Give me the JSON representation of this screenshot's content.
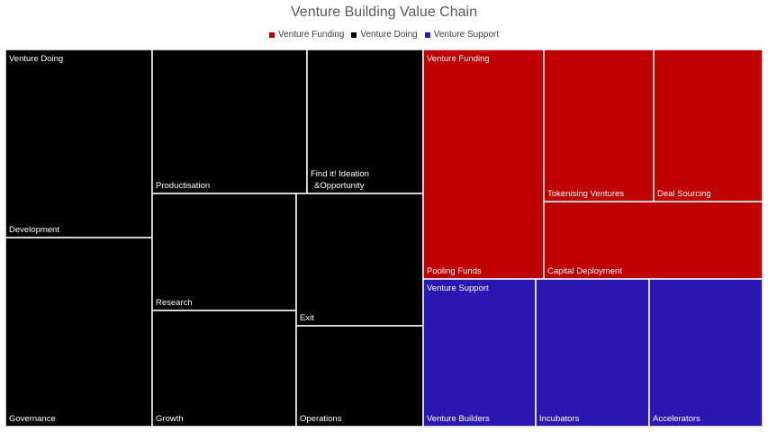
{
  "chart_data": {
    "type": "treemap",
    "title": "Venture Building Value Chain",
    "legend_position": "top",
    "groups": [
      {
        "name": "Venture Doing",
        "color": "#000000",
        "items": [
          "Development",
          "Governance",
          "Productisation",
          "Research",
          "Growth",
          "Find it! Ideation\n&Opportunity",
          "Exit",
          "Operations"
        ]
      },
      {
        "name": "Venture Funding",
        "color": "#C00000",
        "items": [
          "Pooling Funds",
          "Tokenising Ventures",
          "Deal Sourcing",
          "Capital Deployment"
        ]
      },
      {
        "name": "Venture Support",
        "color": "#2A17B1",
        "items": [
          "Venture Builders",
          "Incubators",
          "Accelerators"
        ]
      }
    ]
  }
}
